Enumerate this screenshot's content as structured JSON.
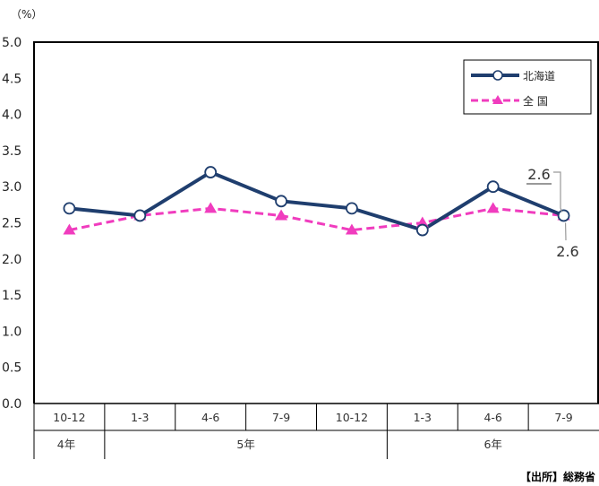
{
  "chart_data": {
    "type": "line",
    "unit_label": "（%）",
    "ylim": [
      0,
      5.0
    ],
    "y_ticks": [
      "0.0",
      "0.5",
      "1.0",
      "1.5",
      "2.0",
      "2.5",
      "3.0",
      "3.5",
      "4.0",
      "4.5",
      "5.0"
    ],
    "categories": [
      "10-12",
      "1-3",
      "4-6",
      "7-9",
      "10-12",
      "1-3",
      "4-6",
      "7-9"
    ],
    "year_groups": [
      {
        "label": "4年",
        "span": 1
      },
      {
        "label": "5年",
        "span": 4
      },
      {
        "label": "6年",
        "span": 3
      }
    ],
    "series": [
      {
        "name": "北海道",
        "color": "#1f3e6e",
        "style": "solid",
        "marker": "circle",
        "values": [
          2.7,
          2.6,
          3.2,
          2.8,
          2.7,
          2.4,
          3.0,
          2.6
        ]
      },
      {
        "name": "全 国",
        "color": "#f03cbe",
        "style": "dashed",
        "marker": "triangle",
        "values": [
          2.4,
          2.6,
          2.7,
          2.6,
          2.4,
          2.5,
          2.7,
          2.6
        ]
      }
    ],
    "annotations": [
      {
        "text": "2.6",
        "series": "北海道",
        "underline": true
      },
      {
        "text": "2.6",
        "series": "全 国",
        "underline": false
      }
    ],
    "grid": false,
    "legend_position": "top-right"
  },
  "source_label": "【出所】総務省"
}
